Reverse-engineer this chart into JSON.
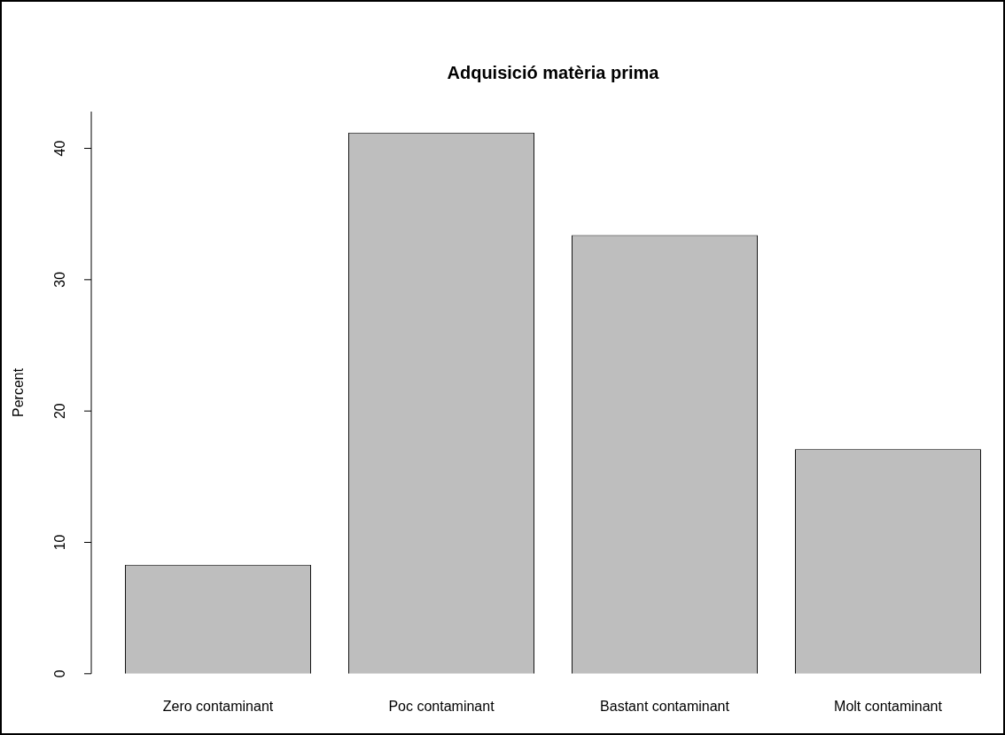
{
  "chart_data": {
    "type": "bar",
    "title": "Adquisició matèria prima",
    "ylabel": "Percent",
    "categories": [
      "Zero contaminant",
      "Poc contaminant",
      "Bastant contaminant",
      "Molt contaminant"
    ],
    "values": [
      8.3,
      41.2,
      33.4,
      17.1
    ],
    "color": "#bebebe",
    "ylim": [
      0,
      42.8
    ],
    "yticks": [
      0,
      10,
      20,
      30,
      40
    ],
    "grid": false,
    "legend": false
  }
}
